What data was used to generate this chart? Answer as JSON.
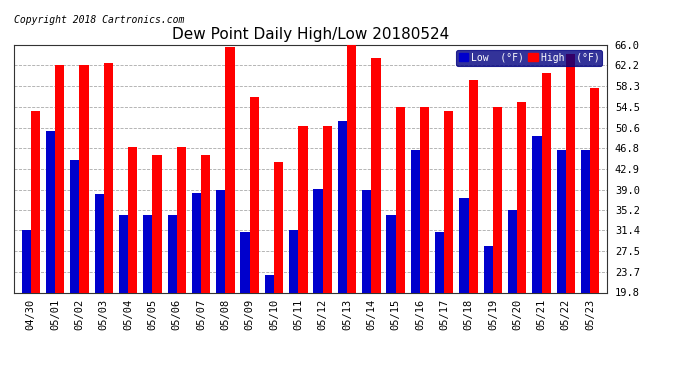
{
  "title": "Dew Point Daily High/Low 20180524",
  "copyright": "Copyright 2018 Cartronics.com",
  "categories": [
    "04/30",
    "05/01",
    "05/02",
    "05/03",
    "05/04",
    "05/05",
    "05/06",
    "05/07",
    "05/08",
    "05/09",
    "05/10",
    "05/11",
    "05/12",
    "05/13",
    "05/14",
    "05/15",
    "05/16",
    "05/17",
    "05/18",
    "05/19",
    "05/20",
    "05/21",
    "05/22",
    "05/23"
  ],
  "high_values": [
    53.6,
    62.2,
    62.2,
    62.6,
    46.9,
    45.5,
    46.9,
    45.5,
    65.7,
    56.3,
    44.1,
    50.9,
    50.9,
    66.2,
    63.5,
    54.5,
    54.5,
    53.6,
    59.5,
    54.5,
    55.4,
    60.8,
    64.4,
    57.9
  ],
  "low_values": [
    31.5,
    50.0,
    44.6,
    38.1,
    34.2,
    34.2,
    34.2,
    38.3,
    39.0,
    31.1,
    23.0,
    31.5,
    39.2,
    51.8,
    39.0,
    34.2,
    46.4,
    31.1,
    37.4,
    28.4,
    35.2,
    49.1,
    46.4,
    46.4
  ],
  "high_color": "#ff0000",
  "low_color": "#0000cc",
  "ylim": [
    19.8,
    66.0
  ],
  "yticks": [
    19.8,
    23.7,
    27.5,
    31.4,
    35.2,
    39.0,
    42.9,
    46.8,
    50.6,
    54.5,
    58.3,
    62.2,
    66.0
  ],
  "background_color": "#ffffff",
  "plot_bg_color": "#ffffff",
  "grid_color": "#aaaaaa",
  "title_fontsize": 11,
  "tick_fontsize": 7.5,
  "bar_width": 0.38,
  "legend_low_label": "Low  (°F)",
  "legend_high_label": "High  (°F)"
}
